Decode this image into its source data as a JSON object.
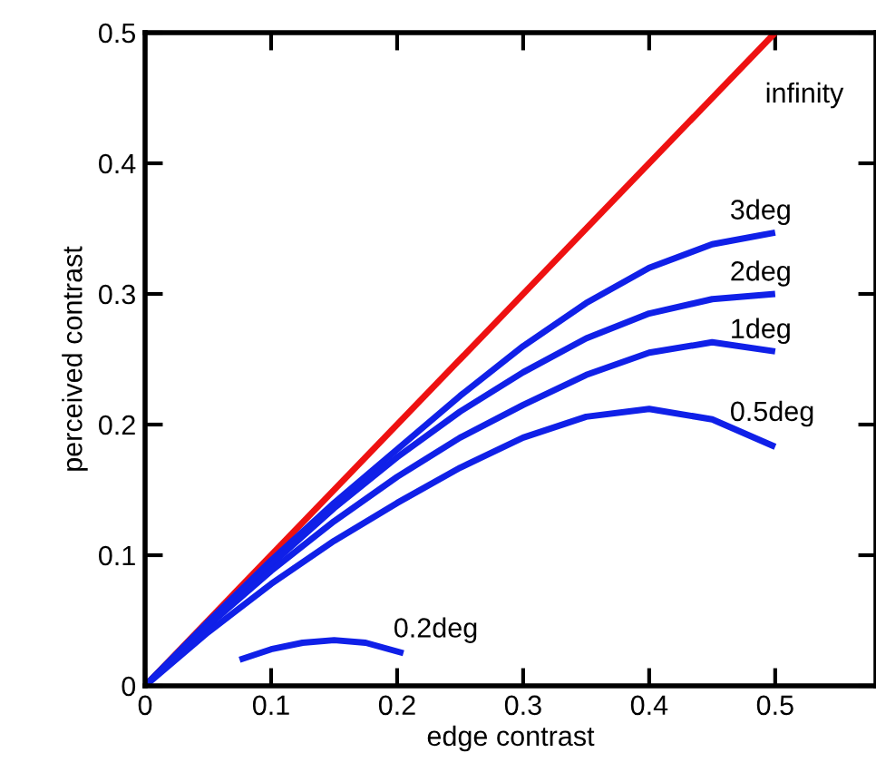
{
  "chart_data": {
    "type": "line",
    "xlabel": "edge contrast",
    "ylabel": "perceived contrast",
    "xlim": [
      0,
      0.58
    ],
    "ylim": [
      0,
      0.5
    ],
    "xticks": [
      0,
      0.1,
      0.2,
      0.3,
      0.4,
      0.5
    ],
    "yticks": [
      0,
      0.1,
      0.2,
      0.3,
      0.4,
      0.5
    ],
    "grid": false,
    "legend": false,
    "marker": "none",
    "line_style": "solid",
    "series": [
      {
        "name": "infinity",
        "color": "#ee1111",
        "x": [
          0,
          0.5
        ],
        "values": [
          0,
          0.5
        ]
      },
      {
        "name": "3deg",
        "color": "#1020e8",
        "x": [
          0,
          0.05,
          0.1,
          0.15,
          0.2,
          0.25,
          0.3,
          0.35,
          0.4,
          0.45,
          0.5
        ],
        "values": [
          0,
          0.049,
          0.096,
          0.14,
          0.181,
          0.222,
          0.26,
          0.293,
          0.32,
          0.338,
          0.347
        ]
      },
      {
        "name": "2deg",
        "color": "#1020e8",
        "x": [
          0,
          0.05,
          0.1,
          0.15,
          0.2,
          0.25,
          0.3,
          0.35,
          0.4,
          0.45,
          0.5
        ],
        "values": [
          0,
          0.048,
          0.093,
          0.136,
          0.175,
          0.21,
          0.24,
          0.266,
          0.285,
          0.296,
          0.3
        ]
      },
      {
        "name": "1deg",
        "color": "#1020e8",
        "x": [
          0,
          0.05,
          0.1,
          0.15,
          0.2,
          0.25,
          0.3,
          0.35,
          0.4,
          0.45,
          0.5
        ],
        "values": [
          0,
          0.046,
          0.088,
          0.126,
          0.16,
          0.19,
          0.215,
          0.238,
          0.255,
          0.263,
          0.256
        ]
      },
      {
        "name": "0.5deg",
        "color": "#1020e8",
        "x": [
          0,
          0.05,
          0.1,
          0.15,
          0.2,
          0.25,
          0.3,
          0.35,
          0.4,
          0.45,
          0.5
        ],
        "values": [
          0,
          0.041,
          0.078,
          0.111,
          0.14,
          0.167,
          0.19,
          0.206,
          0.212,
          0.204,
          0.183
        ]
      },
      {
        "name": "0.2deg",
        "color": "#1020e8",
        "x": [
          0.075,
          0.1,
          0.125,
          0.15,
          0.175,
          0.205
        ],
        "values": [
          0.02,
          0.028,
          0.033,
          0.035,
          0.033,
          0.025
        ]
      }
    ]
  }
}
